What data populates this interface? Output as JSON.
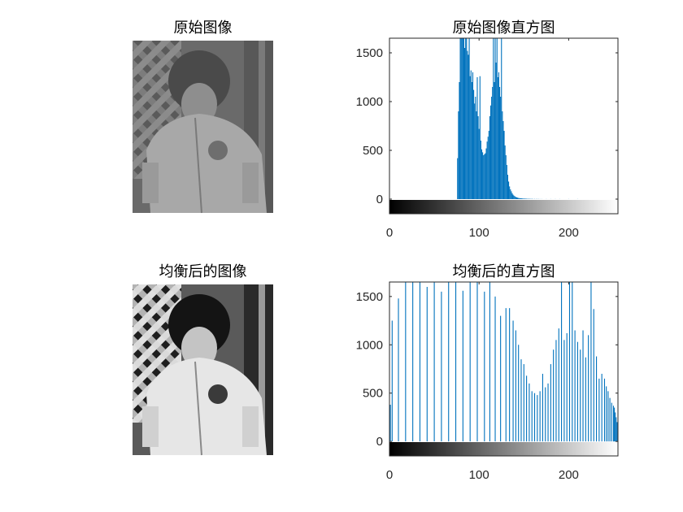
{
  "titles": {
    "original_image": "原始图像",
    "original_hist": "原始图像直方图",
    "equalized_image": "均衡后的图像",
    "equalized_hist": "均衡后的直方图"
  },
  "colors": {
    "bar": "#0072BD",
    "axis": "#262626",
    "background": "#ffffff"
  },
  "chart_data": [
    {
      "type": "bar",
      "title": "原始图像直方图",
      "xlabel": "",
      "ylabel": "",
      "xlim": [
        0,
        255
      ],
      "ylim": [
        -150,
        1650
      ],
      "xticks": [
        0,
        100,
        200
      ],
      "yticks": [
        0,
        500,
        1000,
        1500
      ],
      "grayscale_colorbar": true,
      "x": [
        76,
        77,
        78,
        79,
        80,
        81,
        82,
        83,
        84,
        85,
        86,
        87,
        88,
        89,
        90,
        91,
        92,
        93,
        94,
        95,
        96,
        97,
        98,
        99,
        100,
        101,
        102,
        103,
        104,
        105,
        106,
        107,
        108,
        109,
        110,
        111,
        112,
        113,
        114,
        115,
        116,
        117,
        118,
        119,
        120,
        121,
        122,
        123,
        124,
        125,
        126,
        127,
        128,
        129,
        130,
        131,
        132,
        133,
        134,
        135,
        136,
        137,
        138,
        139,
        140,
        141,
        142,
        143,
        144,
        145,
        146,
        147,
        148,
        149,
        150,
        151,
        152,
        153,
        154,
        155,
        156,
        157,
        158,
        159,
        160,
        162,
        164,
        166,
        168,
        170,
        175,
        180,
        185,
        190,
        200,
        210
      ],
      "values": [
        420,
        900,
        1200,
        1700,
        1700,
        1650,
        1700,
        1700,
        1550,
        1700,
        1650,
        1520,
        1480,
        1700,
        1260,
        1320,
        1200,
        1300,
        1120,
        980,
        1050,
        900,
        1250,
        850,
        720,
        1260,
        600,
        510,
        480,
        450,
        460,
        470,
        520,
        590,
        640,
        700,
        850,
        960,
        1050,
        1150,
        1700,
        1200,
        1700,
        1400,
        1700,
        1250,
        1300,
        1150,
        1050,
        1700,
        900,
        800,
        700,
        550,
        450,
        350,
        250,
        180,
        130,
        100,
        80,
        60,
        45,
        35,
        28,
        22,
        18,
        15,
        12,
        10,
        9,
        8,
        7,
        6,
        5,
        5,
        4,
        4,
        3,
        3,
        3,
        2,
        2,
        2,
        2,
        2,
        2,
        2,
        1,
        1,
        1,
        1,
        1,
        1,
        1,
        1
      ]
    },
    {
      "type": "bar",
      "title": "均衡后的直方图",
      "xlabel": "",
      "ylabel": "",
      "xlim": [
        0,
        255
      ],
      "ylim": [
        -150,
        1650
      ],
      "xticks": [
        0,
        100,
        200
      ],
      "yticks": [
        0,
        500,
        1000,
        1500
      ],
      "grayscale_colorbar": true,
      "x": [
        1,
        3,
        10,
        18,
        26,
        34,
        42,
        50,
        58,
        66,
        74,
        82,
        90,
        98,
        106,
        112,
        118,
        124,
        130,
        134,
        138,
        141,
        144,
        147,
        150,
        153,
        156,
        159,
        162,
        165,
        168,
        171,
        174,
        177,
        180,
        183,
        186,
        189,
        192,
        195,
        198,
        201,
        204,
        207,
        210,
        213,
        216,
        219,
        222,
        225,
        228,
        231,
        234,
        237,
        240,
        242,
        244,
        246,
        248,
        250,
        251,
        252,
        253,
        254,
        255
      ],
      "values": [
        380,
        1250,
        1480,
        1700,
        1700,
        1700,
        1600,
        1700,
        1550,
        1650,
        1700,
        1560,
        1700,
        1700,
        1550,
        1700,
        1500,
        1300,
        1380,
        1380,
        1250,
        1150,
        1000,
        850,
        800,
        680,
        600,
        520,
        500,
        480,
        520,
        700,
        560,
        600,
        800,
        950,
        1050,
        1170,
        1700,
        1050,
        1120,
        1700,
        1700,
        1150,
        1030,
        950,
        1150,
        870,
        1100,
        1700,
        1370,
        880,
        650,
        700,
        650,
        570,
        520,
        450,
        400,
        370,
        350,
        300,
        250,
        200,
        180
      ]
    }
  ]
}
